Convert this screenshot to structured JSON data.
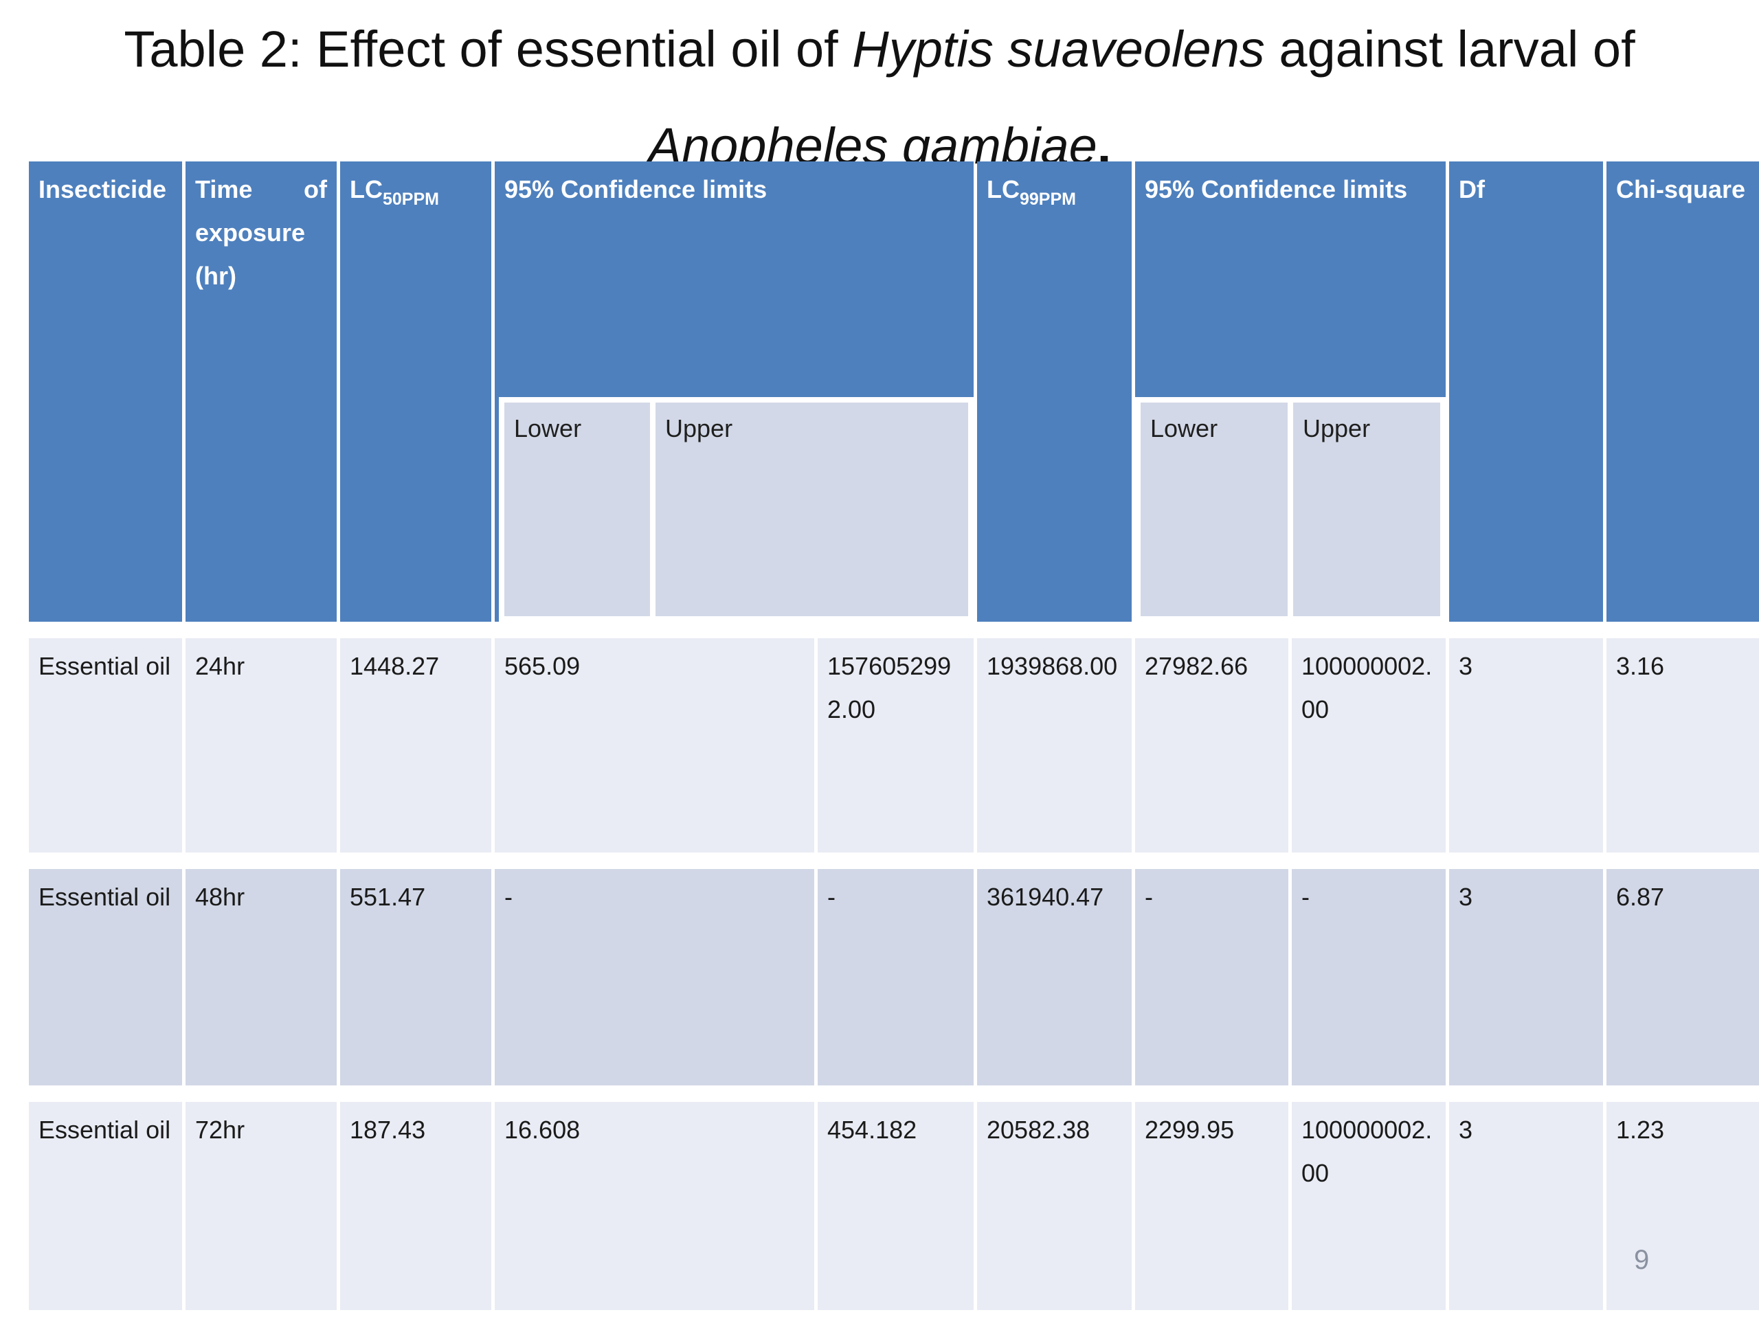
{
  "slide": {
    "title_line1_prefix": "Table 2: Effect of essential oil of ",
    "title_line1_italic": "Hyptis suaveolens",
    "title_line1_suffix": " against larval of",
    "title_line2_italic": "Anopheles gambiae",
    "title_line2_period": ".",
    "page_number": "9"
  },
  "colors": {
    "header_bg": "#4E80BD",
    "row_light_bg": "#E9ECF4",
    "row_dark_bg": "#D1D7E6",
    "subheader_bg": "#D2D8E7",
    "header_text": "#FFFFFF",
    "body_text": "#1A1A1A",
    "page_number_text": "#8A91A0"
  },
  "table": {
    "headers": {
      "insecticide": "Insecticide",
      "time_word1": "Time",
      "time_word2": "of",
      "time_line2": "exposure",
      "time_line3": "(hr)",
      "lc50_base": "LC",
      "lc50_sub": "50PPM",
      "ci1": "95% Confidence limits",
      "lc99_base": "LC",
      "lc99_sub": "99PPM",
      "ci2": "95% Confidence limits",
      "df": "Df",
      "chi": "Chi-square",
      "ci1_lower": "Lower",
      "ci1_upper": "Upper",
      "ci2_lower": "Lower",
      "ci2_upper": "Upper"
    },
    "rows": [
      {
        "insecticide": "Essential oil",
        "time": "24hr",
        "lc50": "1448.27",
        "ci1_lower": "565.09",
        "ci1_upper": "1576052992.00",
        "lc99": "1939868.00",
        "ci2_lower": "27982.66",
        "ci2_upper": "100000002.00",
        "df": "3",
        "chi": "3.16"
      },
      {
        "insecticide": "Essential oil",
        "time": "48hr",
        "lc50": "551.47",
        "ci1_lower": "-",
        "ci1_upper": "-",
        "lc99": "361940.47",
        "ci2_lower": "-",
        "ci2_upper": "-",
        "df": "3",
        "chi": "6.87"
      },
      {
        "insecticide": "Essential oil",
        "time": "72hr",
        "lc50": "187.43",
        "ci1_lower": "16.608",
        "ci1_upper": "454.182",
        "lc99": "20582.38",
        "ci2_lower": "2299.95",
        "ci2_upper": "100000002.00",
        "df": "3",
        "chi": "1.23"
      }
    ]
  }
}
